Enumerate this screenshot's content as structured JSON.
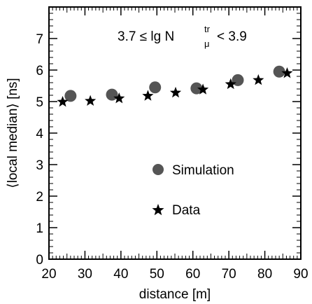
{
  "chart_data": {
    "type": "scatter",
    "xlabel": "distance [m]",
    "ylabel": "⟨local median⟩ [ns]",
    "xlim": [
      20,
      90
    ],
    "ylim": [
      0,
      8
    ],
    "x_ticks": [
      20,
      30,
      40,
      50,
      60,
      70,
      80,
      90
    ],
    "y_ticks": [
      0,
      1,
      2,
      3,
      4,
      5,
      6,
      7
    ],
    "grid": false,
    "legend_position": "center",
    "annotation": {
      "prefix": "3.7 ≤ lg N",
      "superscript": "tr",
      "subscript": "μ",
      "suffix": "< 3.9"
    },
    "series": [
      {
        "name": "Simulation",
        "marker": "circle",
        "color": "#555555",
        "x": [
          26.0,
          37.5,
          49.5,
          61.0,
          72.5,
          84.0
        ],
        "y": [
          5.18,
          5.22,
          5.45,
          5.42,
          5.68,
          5.95
        ]
      },
      {
        "name": "Data",
        "marker": "star",
        "color": "#000000",
        "x": [
          23.8,
          31.5,
          39.5,
          47.5,
          55.2,
          62.8,
          70.5,
          78.2,
          86.2
        ],
        "y": [
          4.99,
          5.02,
          5.1,
          5.18,
          5.28,
          5.38,
          5.55,
          5.68,
          5.9
        ]
      }
    ]
  }
}
